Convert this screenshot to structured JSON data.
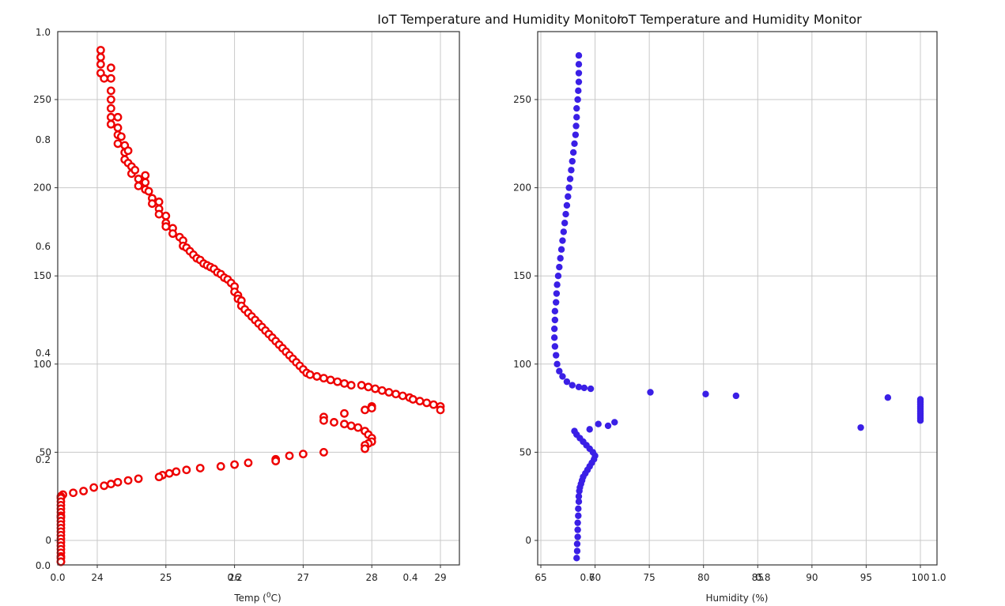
{
  "chart_data": [
    {
      "type": "scatter",
      "title": "IoT Temperature and Humidity Monitor",
      "xlabel": "Temp (",
      "xlabel_sup": "0",
      "xlabel_end": "C)",
      "xlim": [
        23.4,
        29.2
      ],
      "ylim": [
        -13,
        275
      ],
      "x_ticks": [
        "24",
        "25",
        "26",
        "27",
        "28",
        "29"
      ],
      "x_tick_values": [
        24,
        25,
        26,
        27,
        28,
        29
      ],
      "y_ticks": [
        "0",
        "50",
        "100",
        "150",
        "200",
        "250"
      ],
      "y_tick_values": [
        0,
        50,
        100,
        150,
        200,
        250
      ],
      "grid": true,
      "marker": "open-circle",
      "color": "#ee0000",
      "series": [
        {
          "points": [
            [
              24.05,
              278
            ],
            [
              24.05,
              274
            ],
            [
              24.05,
              270
            ],
            [
              24.05,
              265
            ],
            [
              24.1,
              262
            ],
            [
              24.2,
              268
            ],
            [
              24.2,
              262
            ],
            [
              24.2,
              255
            ],
            [
              24.2,
              250
            ],
            [
              24.2,
              245
            ],
            [
              24.2,
              240
            ],
            [
              24.2,
              236
            ],
            [
              24.3,
              240
            ],
            [
              24.3,
              234
            ],
            [
              24.3,
              230
            ],
            [
              24.3,
              225
            ],
            [
              24.35,
              229
            ],
            [
              24.4,
              224
            ],
            [
              24.4,
              220
            ],
            [
              24.4,
              216
            ],
            [
              24.45,
              221
            ],
            [
              24.45,
              214
            ],
            [
              24.5,
              212
            ],
            [
              24.5,
              208
            ],
            [
              24.55,
              210
            ],
            [
              24.6,
              205
            ],
            [
              24.6,
              201
            ],
            [
              24.7,
              207
            ],
            [
              24.7,
              203
            ],
            [
              24.7,
              199
            ],
            [
              24.75,
              198
            ],
            [
              24.8,
              194
            ],
            [
              24.8,
              191
            ],
            [
              24.9,
              192
            ],
            [
              24.9,
              188
            ],
            [
              24.9,
              185
            ],
            [
              25.0,
              184
            ],
            [
              25.0,
              180
            ],
            [
              25.0,
              178
            ],
            [
              25.1,
              177
            ],
            [
              25.1,
              174
            ],
            [
              25.2,
              172
            ],
            [
              25.25,
              170
            ],
            [
              25.25,
              167
            ],
            [
              25.3,
              166
            ],
            [
              25.35,
              164
            ],
            [
              25.4,
              162
            ],
            [
              25.45,
              160
            ],
            [
              25.5,
              159
            ],
            [
              25.55,
              157
            ],
            [
              25.6,
              156
            ],
            [
              25.65,
              155
            ],
            [
              25.7,
              154
            ],
            [
              25.75,
              152
            ],
            [
              25.8,
              151
            ],
            [
              25.85,
              149
            ],
            [
              25.9,
              148
            ],
            [
              25.95,
              146
            ],
            [
              26.0,
              144
            ],
            [
              26.0,
              141
            ],
            [
              26.05,
              139
            ],
            [
              26.05,
              137
            ],
            [
              26.1,
              136
            ],
            [
              26.1,
              133
            ],
            [
              26.15,
              131
            ],
            [
              26.2,
              129
            ],
            [
              26.25,
              127
            ],
            [
              26.3,
              125
            ],
            [
              26.35,
              123
            ],
            [
              26.4,
              121
            ],
            [
              26.45,
              119
            ],
            [
              26.5,
              117
            ],
            [
              26.55,
              115
            ],
            [
              26.6,
              113
            ],
            [
              26.65,
              111
            ],
            [
              26.7,
              109
            ],
            [
              26.75,
              107
            ],
            [
              26.8,
              105
            ],
            [
              26.85,
              103
            ],
            [
              26.9,
              101
            ],
            [
              26.95,
              99
            ],
            [
              27.0,
              97
            ],
            [
              27.05,
              95
            ],
            [
              27.1,
              94
            ],
            [
              27.2,
              93
            ],
            [
              27.3,
              92
            ],
            [
              27.4,
              91
            ],
            [
              27.5,
              90
            ],
            [
              27.6,
              89
            ],
            [
              27.7,
              88
            ],
            [
              27.85,
              88
            ],
            [
              27.95,
              87
            ],
            [
              28.05,
              86
            ],
            [
              28.15,
              85
            ],
            [
              28.25,
              84
            ],
            [
              28.35,
              83
            ],
            [
              28.45,
              82
            ],
            [
              28.55,
              81
            ],
            [
              28.6,
              80
            ],
            [
              28.7,
              79
            ],
            [
              28.8,
              78
            ],
            [
              28.9,
              77
            ],
            [
              29.0,
              76
            ],
            [
              29.0,
              74
            ],
            [
              28.0,
              76
            ],
            [
              28.0,
              75
            ],
            [
              27.9,
              74
            ],
            [
              27.6,
              72
            ],
            [
              27.3,
              70
            ],
            [
              27.3,
              68
            ],
            [
              27.45,
              67
            ],
            [
              27.6,
              66
            ],
            [
              27.7,
              65
            ],
            [
              27.8,
              64
            ],
            [
              27.9,
              62
            ],
            [
              27.95,
              60
            ],
            [
              28.0,
              58
            ],
            [
              28.0,
              56
            ],
            [
              27.95,
              55
            ],
            [
              27.9,
              54
            ],
            [
              27.9,
              52
            ],
            [
              27.3,
              50
            ],
            [
              27.0,
              49
            ],
            [
              26.8,
              48
            ],
            [
              26.6,
              46
            ],
            [
              26.6,
              45
            ],
            [
              26.2,
              44
            ],
            [
              26.0,
              43
            ],
            [
              25.8,
              42
            ],
            [
              25.5,
              41
            ],
            [
              25.3,
              40
            ],
            [
              25.15,
              39
            ],
            [
              25.05,
              38
            ],
            [
              24.95,
              37
            ],
            [
              24.9,
              36
            ],
            [
              24.6,
              35
            ],
            [
              24.45,
              34
            ],
            [
              24.3,
              33
            ],
            [
              24.2,
              32
            ],
            [
              24.1,
              31
            ],
            [
              23.95,
              30
            ],
            [
              23.8,
              28
            ],
            [
              23.65,
              27
            ],
            [
              23.5,
              26
            ],
            [
              23.45,
              25
            ],
            [
              23.4,
              24
            ],
            [
              23.4,
              22
            ],
            [
              23.45,
              20
            ],
            [
              23.45,
              18
            ],
            [
              23.4,
              16
            ],
            [
              23.4,
              14
            ],
            [
              23.45,
              13
            ],
            [
              23.45,
              11
            ],
            [
              23.45,
              9
            ],
            [
              23.45,
              7
            ],
            [
              23.45,
              5
            ],
            [
              23.45,
              3
            ],
            [
              23.45,
              1
            ],
            [
              23.45,
              -1
            ],
            [
              23.35,
              -3
            ],
            [
              23.3,
              -5
            ],
            [
              23.3,
              -7
            ],
            [
              23.3,
              -9
            ],
            [
              23.4,
              -10
            ],
            [
              23.4,
              -12
            ],
            [
              23.45,
              -13
            ]
          ]
        }
      ]
    },
    {
      "type": "scatter",
      "title": "IoT Temperature and Humidity Monitor",
      "xlabel": "Humidity (%)",
      "xlim": [
        64.8,
        100.7
      ],
      "ylim": [
        -13,
        275
      ],
      "x_ticks": [
        "65",
        "70",
        "75",
        "80",
        "85",
        "90",
        "95",
        "100"
      ],
      "x_tick_values": [
        65,
        70,
        75,
        80,
        85,
        90,
        95,
        100
      ],
      "y_ticks": [
        "0",
        "50",
        "100",
        "150",
        "200",
        "250"
      ],
      "y_tick_values": [
        0,
        50,
        100,
        150,
        200,
        250
      ],
      "grid": true,
      "marker": "filled-circle",
      "color": "#3a1fe6",
      "series": [
        {
          "points": [
            [
              68.5,
              275
            ],
            [
              68.5,
              270
            ],
            [
              68.5,
              265
            ],
            [
              68.5,
              260
            ],
            [
              68.45,
              255
            ],
            [
              68.4,
              250
            ],
            [
              68.3,
              245
            ],
            [
              68.3,
              240
            ],
            [
              68.25,
              235
            ],
            [
              68.2,
              230
            ],
            [
              68.1,
              225
            ],
            [
              68.0,
              220
            ],
            [
              67.9,
              215
            ],
            [
              67.8,
              210
            ],
            [
              67.7,
              205
            ],
            [
              67.6,
              200
            ],
            [
              67.5,
              195
            ],
            [
              67.4,
              190
            ],
            [
              67.3,
              185
            ],
            [
              67.2,
              180
            ],
            [
              67.1,
              175
            ],
            [
              67.0,
              170
            ],
            [
              66.9,
              165
            ],
            [
              66.8,
              160
            ],
            [
              66.7,
              155
            ],
            [
              66.6,
              150
            ],
            [
              66.5,
              145
            ],
            [
              66.45,
              140
            ],
            [
              66.4,
              135
            ],
            [
              66.3,
              130
            ],
            [
              66.3,
              125
            ],
            [
              66.25,
              120
            ],
            [
              66.25,
              115
            ],
            [
              66.3,
              110
            ],
            [
              66.4,
              105
            ],
            [
              66.5,
              100
            ],
            [
              66.7,
              96
            ],
            [
              67.0,
              93
            ],
            [
              67.4,
              90
            ],
            [
              67.9,
              88
            ],
            [
              68.5,
              87
            ],
            [
              69.0,
              86.5
            ],
            [
              69.6,
              86
            ],
            [
              75.1,
              84
            ],
            [
              80.2,
              83
            ],
            [
              83.0,
              82
            ],
            [
              97.0,
              81
            ],
            [
              100,
              80
            ],
            [
              100,
              79
            ],
            [
              100,
              78
            ],
            [
              100,
              77
            ],
            [
              100,
              76
            ],
            [
              100,
              75
            ],
            [
              100,
              74
            ],
            [
              100,
              73
            ],
            [
              100,
              72
            ],
            [
              100,
              71
            ],
            [
              100,
              70
            ],
            [
              100,
              69
            ],
            [
              100,
              68
            ],
            [
              71.8,
              67
            ],
            [
              70.3,
              66
            ],
            [
              71.2,
              65
            ],
            [
              94.5,
              64
            ],
            [
              69.5,
              63
            ],
            [
              68.1,
              62
            ],
            [
              68.3,
              60
            ],
            [
              68.6,
              58
            ],
            [
              68.9,
              56
            ],
            [
              69.2,
              54
            ],
            [
              69.5,
              52
            ],
            [
              69.8,
              50
            ],
            [
              70.0,
              48
            ],
            [
              69.9,
              46
            ],
            [
              69.7,
              44
            ],
            [
              69.5,
              42
            ],
            [
              69.3,
              40
            ],
            [
              69.1,
              38
            ],
            [
              68.9,
              36
            ],
            [
              68.8,
              34
            ],
            [
              68.7,
              32
            ],
            [
              68.6,
              30
            ],
            [
              68.55,
              28
            ],
            [
              68.5,
              25
            ],
            [
              68.5,
              22
            ],
            [
              68.45,
              18
            ],
            [
              68.45,
              14
            ],
            [
              68.4,
              10
            ],
            [
              68.4,
              6
            ],
            [
              68.4,
              2
            ],
            [
              68.35,
              -2
            ],
            [
              68.35,
              -6
            ],
            [
              68.3,
              -10
            ]
          ]
        }
      ]
    }
  ],
  "overlay_ticks": {
    "y": [
      "1.0",
      "0.8",
      "0.6",
      "0.4",
      "0.2",
      "0.0"
    ],
    "x_left": [
      "0.0",
      "0.2",
      "0.4",
      "0.6"
    ],
    "x_right": [
      "0.8",
      "1.0"
    ]
  }
}
